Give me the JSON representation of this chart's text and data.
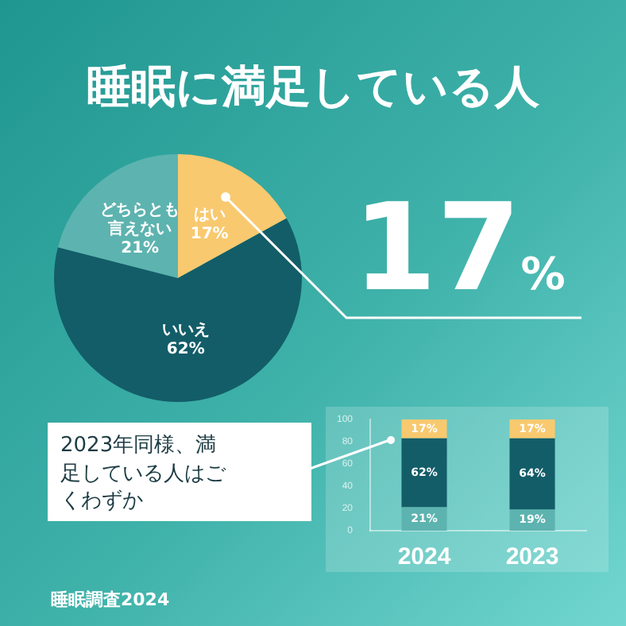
{
  "chart_data": [
    {
      "type": "pie",
      "title": "睡眠に満足している人",
      "categories": [
        "はい",
        "いいえ",
        "どちらとも言えない"
      ],
      "values": [
        17,
        62,
        21
      ],
      "colors": [
        "#f8c96f",
        "#135d68",
        "#5db3af"
      ],
      "value_labels": [
        "17%",
        "62%",
        "21%"
      ],
      "annotations": [
        "17%",
        "睡眠調査2024"
      ]
    },
    {
      "type": "bar",
      "stacked": true,
      "categories": [
        "2024",
        "2023"
      ],
      "ylim": [
        0,
        100
      ],
      "yticks": [
        0,
        20,
        40,
        60,
        80,
        100
      ],
      "series": [
        {
          "color": "#5db3af",
          "values": [
            21,
            19
          ],
          "value_labels": [
            "21%",
            "19%"
          ]
        },
        {
          "color": "#135d68",
          "values": [
            62,
            64
          ],
          "value_labels": [
            "62%",
            "64%"
          ]
        },
        {
          "color": "#f8c96f",
          "values": [
            17,
            17
          ],
          "value_labels": [
            "17%",
            "17%"
          ]
        }
      ],
      "annotations": [
        "2023年同様、満足している人はごくわずか"
      ]
    }
  ]
}
